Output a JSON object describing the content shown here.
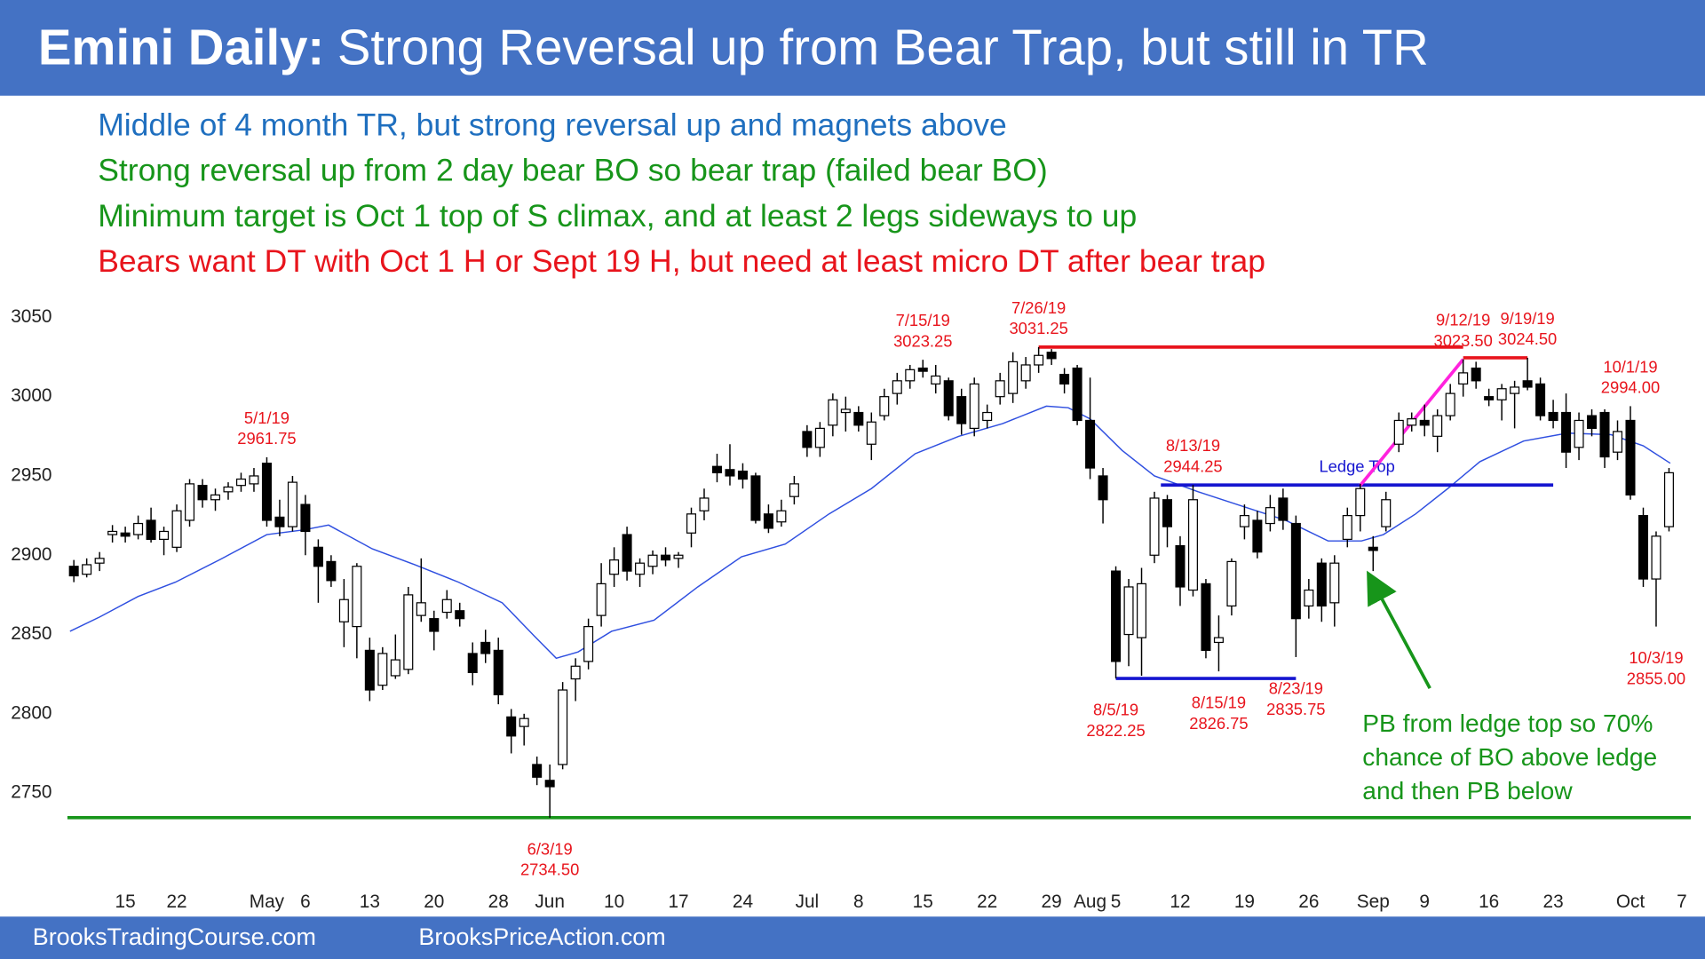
{
  "header": {
    "title_bold": "Emini Daily:",
    "title": "Strong Reversal up from Bear Trap, but still in TR"
  },
  "footer": [
    "BrooksTradingCourse.com",
    "BrooksPriceAction.com"
  ],
  "chart_data": {
    "type": "candlestick",
    "notes": [
      {
        "text": "Middle of 4 month TR, but strong reversal up and magnets above",
        "color": "#1f6fbf"
      },
      {
        "text": "Strong reversal up from 2 day bear BO so bear trap (failed bear BO)",
        "color": "#17951a"
      },
      {
        "text": "Minimum target is Oct 1 top of S climax, and at least 2 legs sideways to up",
        "color": "#17951a"
      },
      {
        "text": "Bears want DT with Oct 1 H or Sept 19 H, but need at least micro DT after bear trap",
        "color": "#e8141c"
      }
    ],
    "callout": {
      "color": "#17951a",
      "lines": [
        "PB from ledge top so 70%",
        "chance of BO above ledge",
        "and then PB below"
      ]
    },
    "ylim": [
      2729,
      3065
    ],
    "yticks": [
      2750,
      2800,
      2850,
      2900,
      2950,
      3000,
      3050
    ],
    "xlim": [
      -0.5,
      125.7
    ],
    "xticks": [
      {
        "value": 4,
        "label": "15"
      },
      {
        "value": 8,
        "label": "22"
      },
      {
        "value": 15,
        "label": "May"
      },
      {
        "value": 18,
        "label": "6"
      },
      {
        "value": 23,
        "label": "13"
      },
      {
        "value": 28,
        "label": "20"
      },
      {
        "value": 33,
        "label": "28"
      },
      {
        "value": 37,
        "label": "Jun"
      },
      {
        "value": 42,
        "label": "10"
      },
      {
        "value": 47,
        "label": "17"
      },
      {
        "value": 52,
        "label": "24"
      },
      {
        "value": 57,
        "label": "Jul"
      },
      {
        "value": 61,
        "label": "8"
      },
      {
        "value": 66,
        "label": "15"
      },
      {
        "value": 71,
        "label": "22"
      },
      {
        "value": 76,
        "label": "29"
      },
      {
        "value": 79,
        "label": "Aug"
      },
      {
        "value": 81,
        "label": "5"
      },
      {
        "value": 86,
        "label": "12"
      },
      {
        "value": 91,
        "label": "19"
      },
      {
        "value": 96,
        "label": "26"
      },
      {
        "value": 101,
        "label": "Sep"
      },
      {
        "value": 105,
        "label": "9"
      },
      {
        "value": 110,
        "label": "16"
      },
      {
        "value": 115,
        "label": "23"
      },
      {
        "value": 121,
        "label": "Oct"
      },
      {
        "value": 125,
        "label": "7"
      }
    ],
    "up_color": "#ffffff",
    "down_color": "#000000",
    "ohlc": [
      [
        2893,
        2897,
        2883,
        2887
      ],
      [
        2888,
        2898,
        2886,
        2894
      ],
      [
        2895,
        2902,
        2890,
        2898
      ],
      [
        2913,
        2919,
        2908,
        2915
      ],
      [
        2914,
        2918,
        2908,
        2912
      ],
      [
        2913,
        2925,
        2910,
        2920
      ],
      [
        2922,
        2930,
        2908,
        2910
      ],
      [
        2910,
        2918,
        2900,
        2915
      ],
      [
        2905,
        2932,
        2902,
        2928
      ],
      [
        2922,
        2948,
        2918,
        2945
      ],
      [
        2944,
        2948,
        2930,
        2935
      ],
      [
        2935,
        2942,
        2928,
        2938
      ],
      [
        2940,
        2946,
        2935,
        2943
      ],
      [
        2944,
        2952,
        2940,
        2948
      ],
      [
        2945,
        2955,
        2940,
        2950
      ],
      [
        2958,
        2961.75,
        2918,
        2922
      ],
      [
        2924,
        2935,
        2912,
        2918
      ],
      [
        2918,
        2950,
        2915,
        2946
      ],
      [
        2932,
        2938,
        2900,
        2915
      ],
      [
        2905,
        2910,
        2870,
        2893
      ],
      [
        2896,
        2900,
        2880,
        2884
      ],
      [
        2858,
        2885,
        2842,
        2872
      ],
      [
        2855,
        2895,
        2835,
        2893
      ],
      [
        2840,
        2848,
        2808,
        2815
      ],
      [
        2818,
        2842,
        2815,
        2838
      ],
      [
        2824,
        2850,
        2822,
        2834
      ],
      [
        2828,
        2880,
        2825,
        2875
      ],
      [
        2862,
        2898,
        2858,
        2870
      ],
      [
        2860,
        2865,
        2840,
        2852
      ],
      [
        2864,
        2878,
        2860,
        2872
      ],
      [
        2865,
        2870,
        2855,
        2860
      ],
      [
        2838,
        2845,
        2818,
        2826
      ],
      [
        2845,
        2853,
        2832,
        2838
      ],
      [
        2840,
        2848,
        2806,
        2812
      ],
      [
        2798,
        2803,
        2775,
        2786
      ],
      [
        2792,
        2800,
        2780,
        2797
      ],
      [
        2768,
        2773,
        2755,
        2760
      ],
      [
        2758,
        2768,
        2734.5,
        2754
      ],
      [
        2768,
        2820,
        2765,
        2815
      ],
      [
        2822,
        2835,
        2808,
        2830
      ],
      [
        2833,
        2860,
        2828,
        2855
      ],
      [
        2862,
        2895,
        2855,
        2882
      ],
      [
        2888,
        2905,
        2880,
        2897
      ],
      [
        2913,
        2918,
        2884,
        2890
      ],
      [
        2888,
        2898,
        2880,
        2895
      ],
      [
        2893,
        2903,
        2888,
        2900
      ],
      [
        2900,
        2905,
        2893,
        2897
      ],
      [
        2898,
        2902,
        2892,
        2900
      ],
      [
        2914,
        2930,
        2905,
        2926
      ],
      [
        2928,
        2942,
        2922,
        2936
      ],
      [
        2956,
        2964,
        2946,
        2952
      ],
      [
        2954,
        2970,
        2944,
        2950
      ],
      [
        2953,
        2958,
        2942,
        2948
      ],
      [
        2950,
        2952,
        2920,
        2922
      ],
      [
        2926,
        2932,
        2914,
        2917
      ],
      [
        2921,
        2935,
        2918,
        2928
      ],
      [
        2937,
        2950,
        2932,
        2945
      ],
      [
        2978,
        2982,
        2962,
        2968
      ],
      [
        2968,
        2984,
        2962,
        2980
      ],
      [
        2982,
        3002,
        2975,
        2998
      ],
      [
        2990,
        3000,
        2978,
        2992
      ],
      [
        2990,
        2994,
        2978,
        2982
      ],
      [
        2970,
        2990,
        2960,
        2984
      ],
      [
        2988,
        3005,
        2985,
        3000
      ],
      [
        3002,
        3015,
        2995,
        3010
      ],
      [
        3010,
        3020,
        3005,
        3017
      ],
      [
        3018,
        3023.25,
        3012,
        3016
      ],
      [
        3008,
        3020,
        3002,
        3013
      ],
      [
        3010,
        3012,
        2985,
        2988
      ],
      [
        3000,
        3005,
        2976,
        2983
      ],
      [
        2980,
        3012,
        2975,
        3008
      ],
      [
        2985,
        2995,
        2980,
        2990
      ],
      [
        3000,
        3015,
        2995,
        3010
      ],
      [
        3002,
        3028,
        2996,
        3022
      ],
      [
        3010,
        3025,
        3005,
        3020
      ],
      [
        3020,
        3031.25,
        3015,
        3026
      ],
      [
        3028,
        3030,
        3020,
        3024
      ],
      [
        3014,
        3018,
        3002,
        3008
      ],
      [
        3018,
        3020,
        2982,
        2985
      ],
      [
        2985,
        3012,
        2948,
        2955
      ],
      [
        2950,
        2955,
        2920,
        2935
      ],
      [
        2890,
        2893,
        2822.25,
        2833
      ],
      [
        2850,
        2885,
        2830,
        2880
      ],
      [
        2848,
        2892,
        2824,
        2882
      ],
      [
        2900,
        2940,
        2895,
        2936
      ],
      [
        2935,
        2938,
        2905,
        2918
      ],
      [
        2906,
        2912,
        2868,
        2880
      ],
      [
        2878,
        2944.25,
        2874,
        2935
      ],
      [
        2882,
        2885,
        2835,
        2840
      ],
      [
        2845,
        2862,
        2826.75,
        2848
      ],
      [
        2868,
        2898,
        2862,
        2896
      ],
      [
        2918,
        2932,
        2910,
        2925
      ],
      [
        2922,
        2928,
        2898,
        2902
      ],
      [
        2920,
        2938,
        2915,
        2930
      ],
      [
        2936,
        2942,
        2916,
        2922
      ],
      [
        2920,
        2925,
        2835.75,
        2860
      ],
      [
        2868,
        2885,
        2860,
        2878
      ],
      [
        2895,
        2898,
        2858,
        2868
      ],
      [
        2870,
        2900,
        2855,
        2895
      ],
      [
        2910,
        2930,
        2905,
        2925
      ],
      [
        2925,
        2945,
        2915,
        2942
      ],
      [
        2905,
        2912,
        2890,
        2903
      ],
      [
        2918,
        2940,
        2915,
        2935
      ],
      [
        2970,
        2990,
        2965,
        2985
      ],
      [
        2982,
        2990,
        2978,
        2986
      ],
      [
        2985,
        2995,
        2975,
        2982
      ],
      [
        2975,
        2992,
        2965,
        2988
      ],
      [
        2988,
        3008,
        2985,
        3002
      ],
      [
        3008,
        3023.5,
        3000,
        3015
      ],
      [
        3018,
        3022,
        3005,
        3010
      ],
      [
        3000,
        3005,
        2994,
        2998
      ],
      [
        2998,
        3008,
        2985,
        3005
      ],
      [
        3002,
        3010,
        2980,
        3006
      ],
      [
        3010,
        3024.5,
        3004,
        3006
      ],
      [
        3008,
        3012,
        2985,
        2988
      ],
      [
        2990,
        2998,
        2980,
        2985
      ],
      [
        2990,
        3002,
        2955,
        2965
      ],
      [
        2968,
        2990,
        2960,
        2985
      ],
      [
        2988,
        2992,
        2975,
        2980
      ],
      [
        2990,
        2992,
        2955,
        2962
      ],
      [
        2965,
        2985,
        2960,
        2978
      ],
      [
        2985,
        2994,
        2935,
        2938
      ],
      [
        2925,
        2930,
        2880,
        2885
      ],
      [
        2885,
        2915,
        2855,
        2912
      ],
      [
        2918,
        2955,
        2915,
        2952
      ]
    ],
    "ma": {
      "color": "#2f4fe0",
      "x": [
        -0.3,
        2,
        5,
        7.9,
        11.3,
        15,
        17.9,
        19.8,
        23.2,
        26.5,
        29.9,
        33.3,
        35.8,
        37.5,
        39.2,
        41.8,
        45.1,
        48.5,
        51.9,
        55.3,
        58.7,
        62,
        65.4,
        68.8,
        72.2,
        75.6,
        77.3,
        79,
        81.5,
        84,
        87.4,
        90.8,
        94.2,
        97.5,
        100.1,
        101.8,
        104.3,
        106.8,
        109.3,
        112.7,
        116.1,
        119.5,
        122,
        124.1
      ],
      "values": [
        2852,
        2861,
        2874,
        2883,
        2897,
        2913,
        2916,
        2919,
        2904,
        2894,
        2883,
        2870,
        2849,
        2835,
        2839,
        2852,
        2859,
        2880,
        2899,
        2907,
        2926,
        2942,
        2964,
        2975,
        2983,
        2994,
        2993,
        2986,
        2966,
        2950,
        2940,
        2931,
        2922,
        2909,
        2909,
        2913,
        2926,
        2942,
        2959,
        2972,
        2977,
        2976,
        2969,
        2958
      ]
    },
    "annotations": [
      {
        "label": "5/1/19",
        "x": 15,
        "value": 2961.75
      },
      {
        "label": "6/3/19",
        "x": 37,
        "value": 2734.5,
        "value_label": "2734.50"
      },
      {
        "label": "7/15/19",
        "x": 66,
        "value": 3023.25
      },
      {
        "label": "7/26/19",
        "x": 75,
        "value": 3031.25
      },
      {
        "label": "8/5/19",
        "x": 81,
        "value": 2822.25
      },
      {
        "label": "8/13/19",
        "x": 87,
        "value": 2944.25
      },
      {
        "label": "8/15/19",
        "x": 89,
        "value": 2826.75
      },
      {
        "label": "8/23/19",
        "x": 95,
        "value": 2835.75
      },
      {
        "label": "9/12/19",
        "x": 108,
        "value": 3023.5,
        "value_label": "3023.50"
      },
      {
        "label": "9/19/19",
        "x": 113,
        "value": 3024.5,
        "value_label": "3024.50"
      },
      {
        "label": "10/1/19",
        "x": 121,
        "value": 2994,
        "value_label": "2994.00"
      },
      {
        "label": "10/3/19",
        "x": 123,
        "value": 2855,
        "value_label": "2855.00"
      }
    ],
    "lines": [
      {
        "color": "#e8141c",
        "x": [
          75,
          108
        ],
        "values": [
          3031.25,
          3031.25
        ]
      },
      {
        "color": "#e8141c",
        "x": [
          108,
          113
        ],
        "values": [
          3024.5,
          3024.5
        ]
      },
      {
        "color": "#1515d0",
        "x": [
          84.5,
          115
        ],
        "values": [
          2944.25,
          2944.25
        ],
        "label": "Ledge Top"
      },
      {
        "color": "#1515d0",
        "x": [
          81,
          95
        ],
        "values": [
          2822.25,
          2822.25
        ]
      },
      {
        "color": "#17951a",
        "x": [
          -0.5,
          125.7
        ],
        "values": [
          2734.5,
          2734.5
        ]
      },
      {
        "color": "#ff22dd",
        "x": [
          100,
          108
        ],
        "values": [
          2944,
          3023.5
        ]
      }
    ]
  }
}
